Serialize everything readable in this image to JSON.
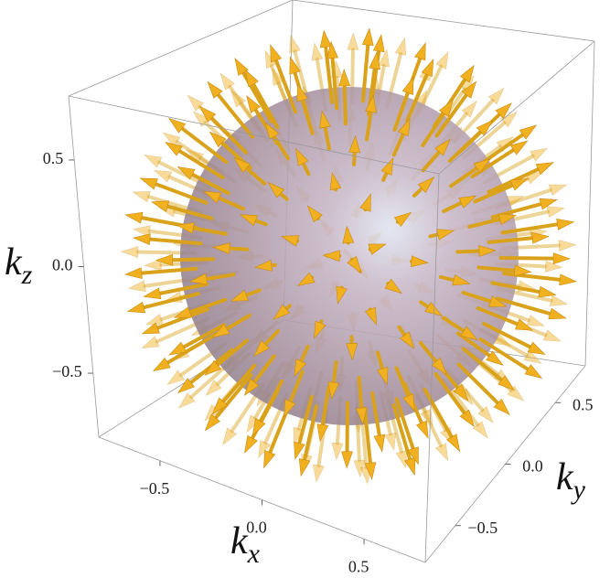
{
  "chart_data": {
    "type": "vector3d",
    "xlabel": [
      "k",
      "x"
    ],
    "ylabel": [
      "k",
      "y"
    ],
    "zlabel": [
      "k",
      "z"
    ],
    "xlim": [
      -0.8,
      0.8
    ],
    "ylim": [
      -0.8,
      0.8
    ],
    "zlim": [
      -0.8,
      0.8
    ],
    "xticks": [
      {
        "value": -0.5,
        "label": "−0.5"
      },
      {
        "value": 0,
        "label": "0.0"
      },
      0.5
    ],
    "yticks": [
      {
        "value": -0.5,
        "label": "−0.5"
      },
      {
        "value": 0,
        "label": "0.0"
      },
      0.5
    ],
    "zticks": [
      {
        "value": -0.5,
        "label": "−0.5"
      },
      {
        "value": 0,
        "label": "0.0"
      },
      0.5
    ],
    "color": "#f0b020"
  }
}
